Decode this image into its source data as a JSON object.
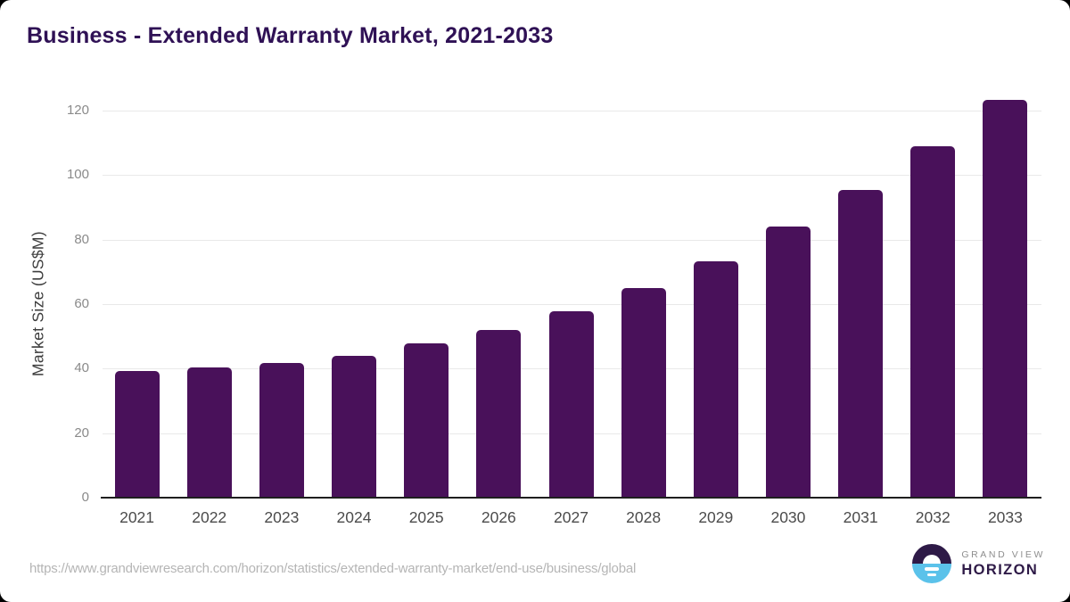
{
  "page": {
    "title": "Business - Extended Warranty Market, 2021-2033",
    "source_url": "https://www.grandviewresearch.com/horizon/statistics/extended-warranty-market/end-use/business/global",
    "logo": {
      "top_text": "GRAND VIEW",
      "bottom_text": "HORIZON"
    }
  },
  "colors": {
    "bar": "#49115a",
    "title": "#2f1155",
    "gridline": "#e9e9e9",
    "axis_line": "#1f1f1f",
    "y_tick_label": "#8a8a8a",
    "x_tick_label": "#4b4b4b",
    "source_url": "#b5b5b5",
    "logo_dark": "#2e1a47",
    "logo_blue": "#5bc2ea"
  },
  "chart_data": {
    "type": "bar",
    "title": "Business - Extended Warranty Market, 2021-2033",
    "categories": [
      "2021",
      "2022",
      "2023",
      "2024",
      "2025",
      "2026",
      "2027",
      "2028",
      "2029",
      "2030",
      "2031",
      "2032",
      "2033"
    ],
    "values": [
      39.2,
      40.3,
      41.7,
      44.0,
      47.8,
      52.0,
      57.8,
      64.9,
      73.4,
      84.0,
      95.3,
      108.9,
      123.3
    ],
    "xlabel": "",
    "ylabel": "Market Size (US$M)",
    "ylim": [
      0,
      120
    ],
    "yticks": [
      0,
      20,
      40,
      60,
      80,
      100,
      120
    ],
    "grid": true,
    "legend": false
  }
}
